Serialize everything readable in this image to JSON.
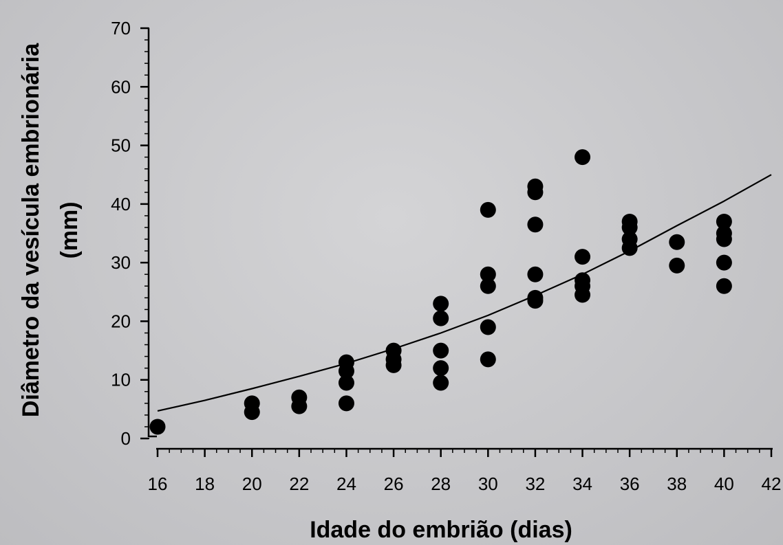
{
  "chart_data": {
    "type": "scatter",
    "xlabel": "Idade do embrião (dias)",
    "ylabel_line1": "Diâmetro da vesícula embrionária",
    "ylabel_line2": "(mm)",
    "xlim": [
      16,
      42
    ],
    "ylim": [
      0,
      70
    ],
    "x_ticks": [
      16,
      18,
      20,
      22,
      24,
      26,
      28,
      30,
      32,
      34,
      36,
      38,
      40,
      42
    ],
    "y_ticks": [
      0,
      10,
      20,
      30,
      40,
      50,
      60,
      70
    ],
    "grid": false,
    "series": [
      {
        "kind": "points",
        "color": "#000000",
        "points": [
          [
            16,
            2
          ],
          [
            20,
            6
          ],
          [
            20,
            4.5
          ],
          [
            22,
            7
          ],
          [
            22,
            5.5
          ],
          [
            24,
            13
          ],
          [
            24,
            11.5
          ],
          [
            24,
            9.5
          ],
          [
            24,
            6
          ],
          [
            26,
            15
          ],
          [
            26,
            13.5
          ],
          [
            26,
            12.5
          ],
          [
            28,
            23
          ],
          [
            28,
            20.5
          ],
          [
            28,
            15
          ],
          [
            28,
            12
          ],
          [
            28,
            9.5
          ],
          [
            30,
            39
          ],
          [
            30,
            28
          ],
          [
            30,
            26
          ],
          [
            30,
            19
          ],
          [
            30,
            13.5
          ],
          [
            32,
            43
          ],
          [
            32,
            42
          ],
          [
            32,
            36.5
          ],
          [
            32,
            28
          ],
          [
            32,
            24
          ],
          [
            32,
            23.5
          ],
          [
            34,
            48
          ],
          [
            34,
            31
          ],
          [
            34,
            27
          ],
          [
            34,
            26
          ],
          [
            34,
            24.5
          ],
          [
            36,
            37
          ],
          [
            36,
            36
          ],
          [
            36,
            34
          ],
          [
            36,
            32.5
          ],
          [
            38,
            33.5
          ],
          [
            38,
            29.5
          ],
          [
            40,
            37
          ],
          [
            40,
            35
          ],
          [
            40,
            34
          ],
          [
            40,
            30
          ],
          [
            40,
            26
          ]
        ]
      },
      {
        "kind": "line",
        "color": "#000000",
        "points": [
          [
            16,
            4.7
          ],
          [
            18,
            6.5
          ],
          [
            20,
            8.5
          ],
          [
            22,
            10.6
          ],
          [
            24,
            12.8
          ],
          [
            26,
            15.3
          ],
          [
            28,
            18
          ],
          [
            30,
            21
          ],
          [
            32,
            24.4
          ],
          [
            34,
            28
          ],
          [
            36,
            32
          ],
          [
            38,
            36.3
          ],
          [
            40,
            40.5
          ],
          [
            42,
            45
          ]
        ]
      }
    ]
  },
  "colors": {
    "background": "#c8c8ca",
    "marks": "#000000"
  }
}
